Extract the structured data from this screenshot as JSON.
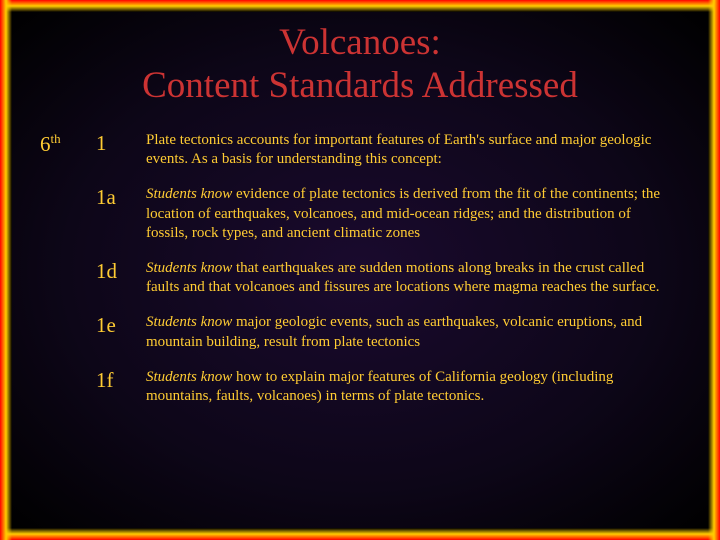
{
  "colors": {
    "title": "#cc3333",
    "body_text": "#ffcc33",
    "background": "#000000"
  },
  "title_line1": "Volcanoes:",
  "title_line2": "Content Standards Addressed",
  "grade": "6",
  "grade_suffix": "th",
  "rows": [
    {
      "code": "1",
      "lead": "",
      "text": "Plate tectonics accounts for important features of Earth's surface and major geologic events. As a basis for understanding this concept:"
    },
    {
      "code": "1a",
      "lead": "Students know",
      "text": " evidence of plate tectonics is derived from the fit of the continents; the location of earthquakes, volcanoes, and mid-ocean ridges; and the distribution of fossils, rock types, and ancient climatic zones"
    },
    {
      "code": "1d",
      "lead": "Students know",
      "text": " that earthquakes are sudden motions along breaks in the crust called faults and that volcanoes and fissures are locations where magma reaches the surface."
    },
    {
      "code": "1e",
      "lead": "Students know",
      "text": " major geologic events, such as earthquakes, volcanic eruptions, and mountain building, result from plate tectonics"
    },
    {
      "code": "1f",
      "lead": "Students know",
      "text": " how to explain major features of California geology (including mountains, faults, volcanoes) in terms of plate tectonics."
    }
  ]
}
